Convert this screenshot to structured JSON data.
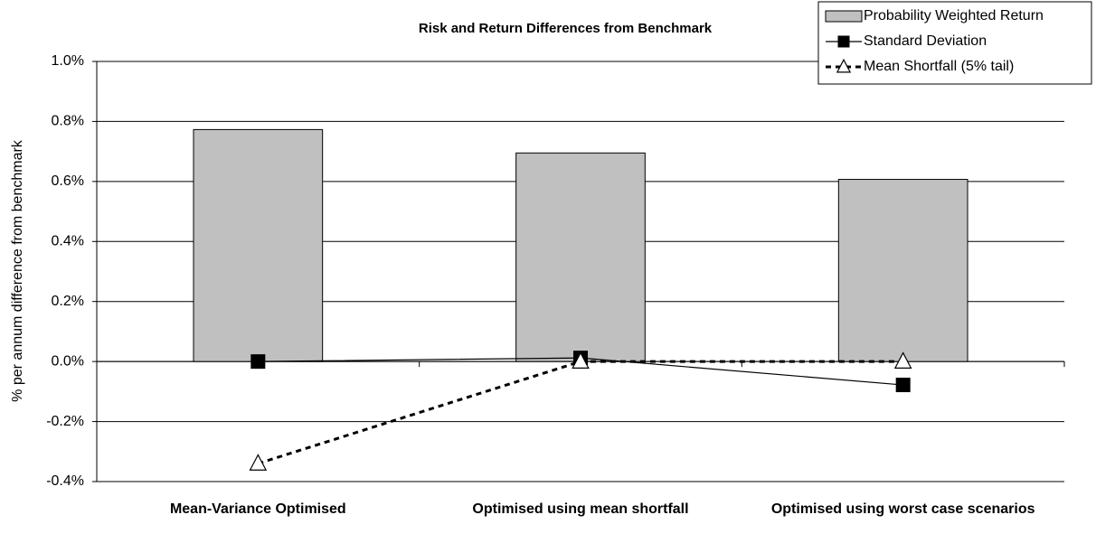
{
  "chart_data": {
    "type": "combo",
    "title": "Risk and Return Differences from Benchmark",
    "ylabel": "% per annum difference from benchmark",
    "categories": [
      "Mean-Variance Optimised",
      "Optimised using mean shortfall",
      "Optimised using worst case scenarios"
    ],
    "series": [
      {
        "name": "Probability Weighted Return",
        "type": "bar",
        "color": "#c0c0c0",
        "values": [
          0.773,
          0.695,
          0.607
        ]
      },
      {
        "name": "Standard Deviation",
        "type": "line",
        "marker": "square",
        "dashed": false,
        "color": "#000000",
        "values": [
          0.0,
          0.012,
          -0.078
        ]
      },
      {
        "name": "Mean Shortfall (5% tail)",
        "type": "line",
        "marker": "triangle",
        "dashed": true,
        "color": "#000000",
        "values": [
          -0.34,
          0.0,
          0.0
        ]
      }
    ],
    "ylim": [
      -0.4,
      1.0
    ],
    "yticks": [
      {
        "value": -0.4,
        "label": "-0.4%"
      },
      {
        "value": -0.2,
        "label": "-0.2%"
      },
      {
        "value": 0.0,
        "label": "0.0%"
      },
      {
        "value": 0.2,
        "label": "0.2%"
      },
      {
        "value": 0.4,
        "label": "0.4%"
      },
      {
        "value": 0.6,
        "label": "0.6%"
      },
      {
        "value": 0.8,
        "label": "0.8%"
      },
      {
        "value": 1.0,
        "label": "1.0%"
      }
    ],
    "grid": true,
    "legend": "top-right"
  }
}
